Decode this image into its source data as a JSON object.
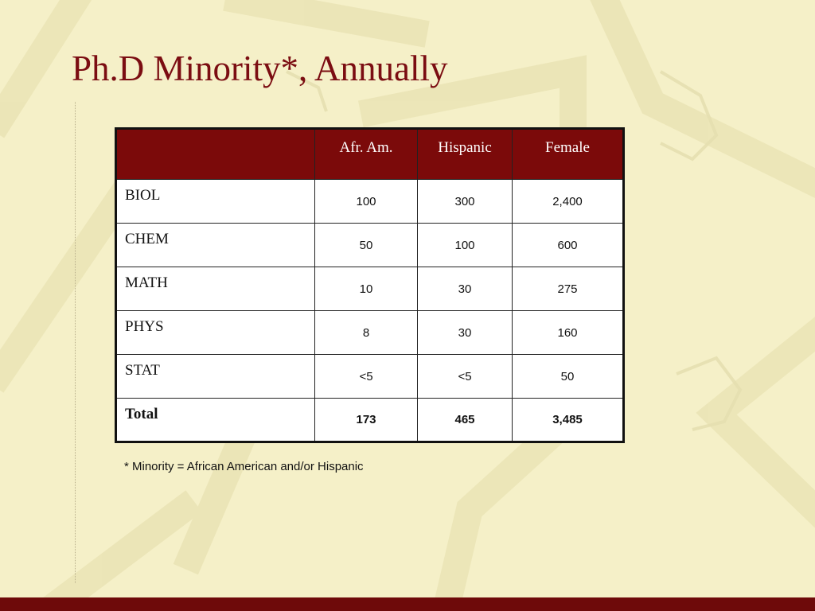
{
  "slide": {
    "title": "Ph.D Minority*, Annually",
    "footnote": "* Minority = African American and/or Hispanic",
    "colors": {
      "title": "#7b0d12",
      "header_bg": "#7b0a0a",
      "background": "#f5f0c8",
      "bottom_bar": "#6e0a0a"
    }
  },
  "table": {
    "columns": [
      "",
      "Afr. Am.",
      "Hispanic",
      "Female"
    ],
    "rows": [
      {
        "label": "BIOL",
        "afr_am": "100",
        "hispanic": "300",
        "female": "2,400"
      },
      {
        "label": "CHEM",
        "afr_am": "50",
        "hispanic": "100",
        "female": "600"
      },
      {
        "label": "MATH",
        "afr_am": "10",
        "hispanic": "30",
        "female": "275"
      },
      {
        "label": "PHYS",
        "afr_am": "8",
        "hispanic": "30",
        "female": "160"
      },
      {
        "label": "STAT",
        "afr_am": "<5",
        "hispanic": "<5",
        "female": "50"
      },
      {
        "label": "Total",
        "afr_am": "173",
        "hispanic": "465",
        "female": "3,485"
      }
    ]
  }
}
